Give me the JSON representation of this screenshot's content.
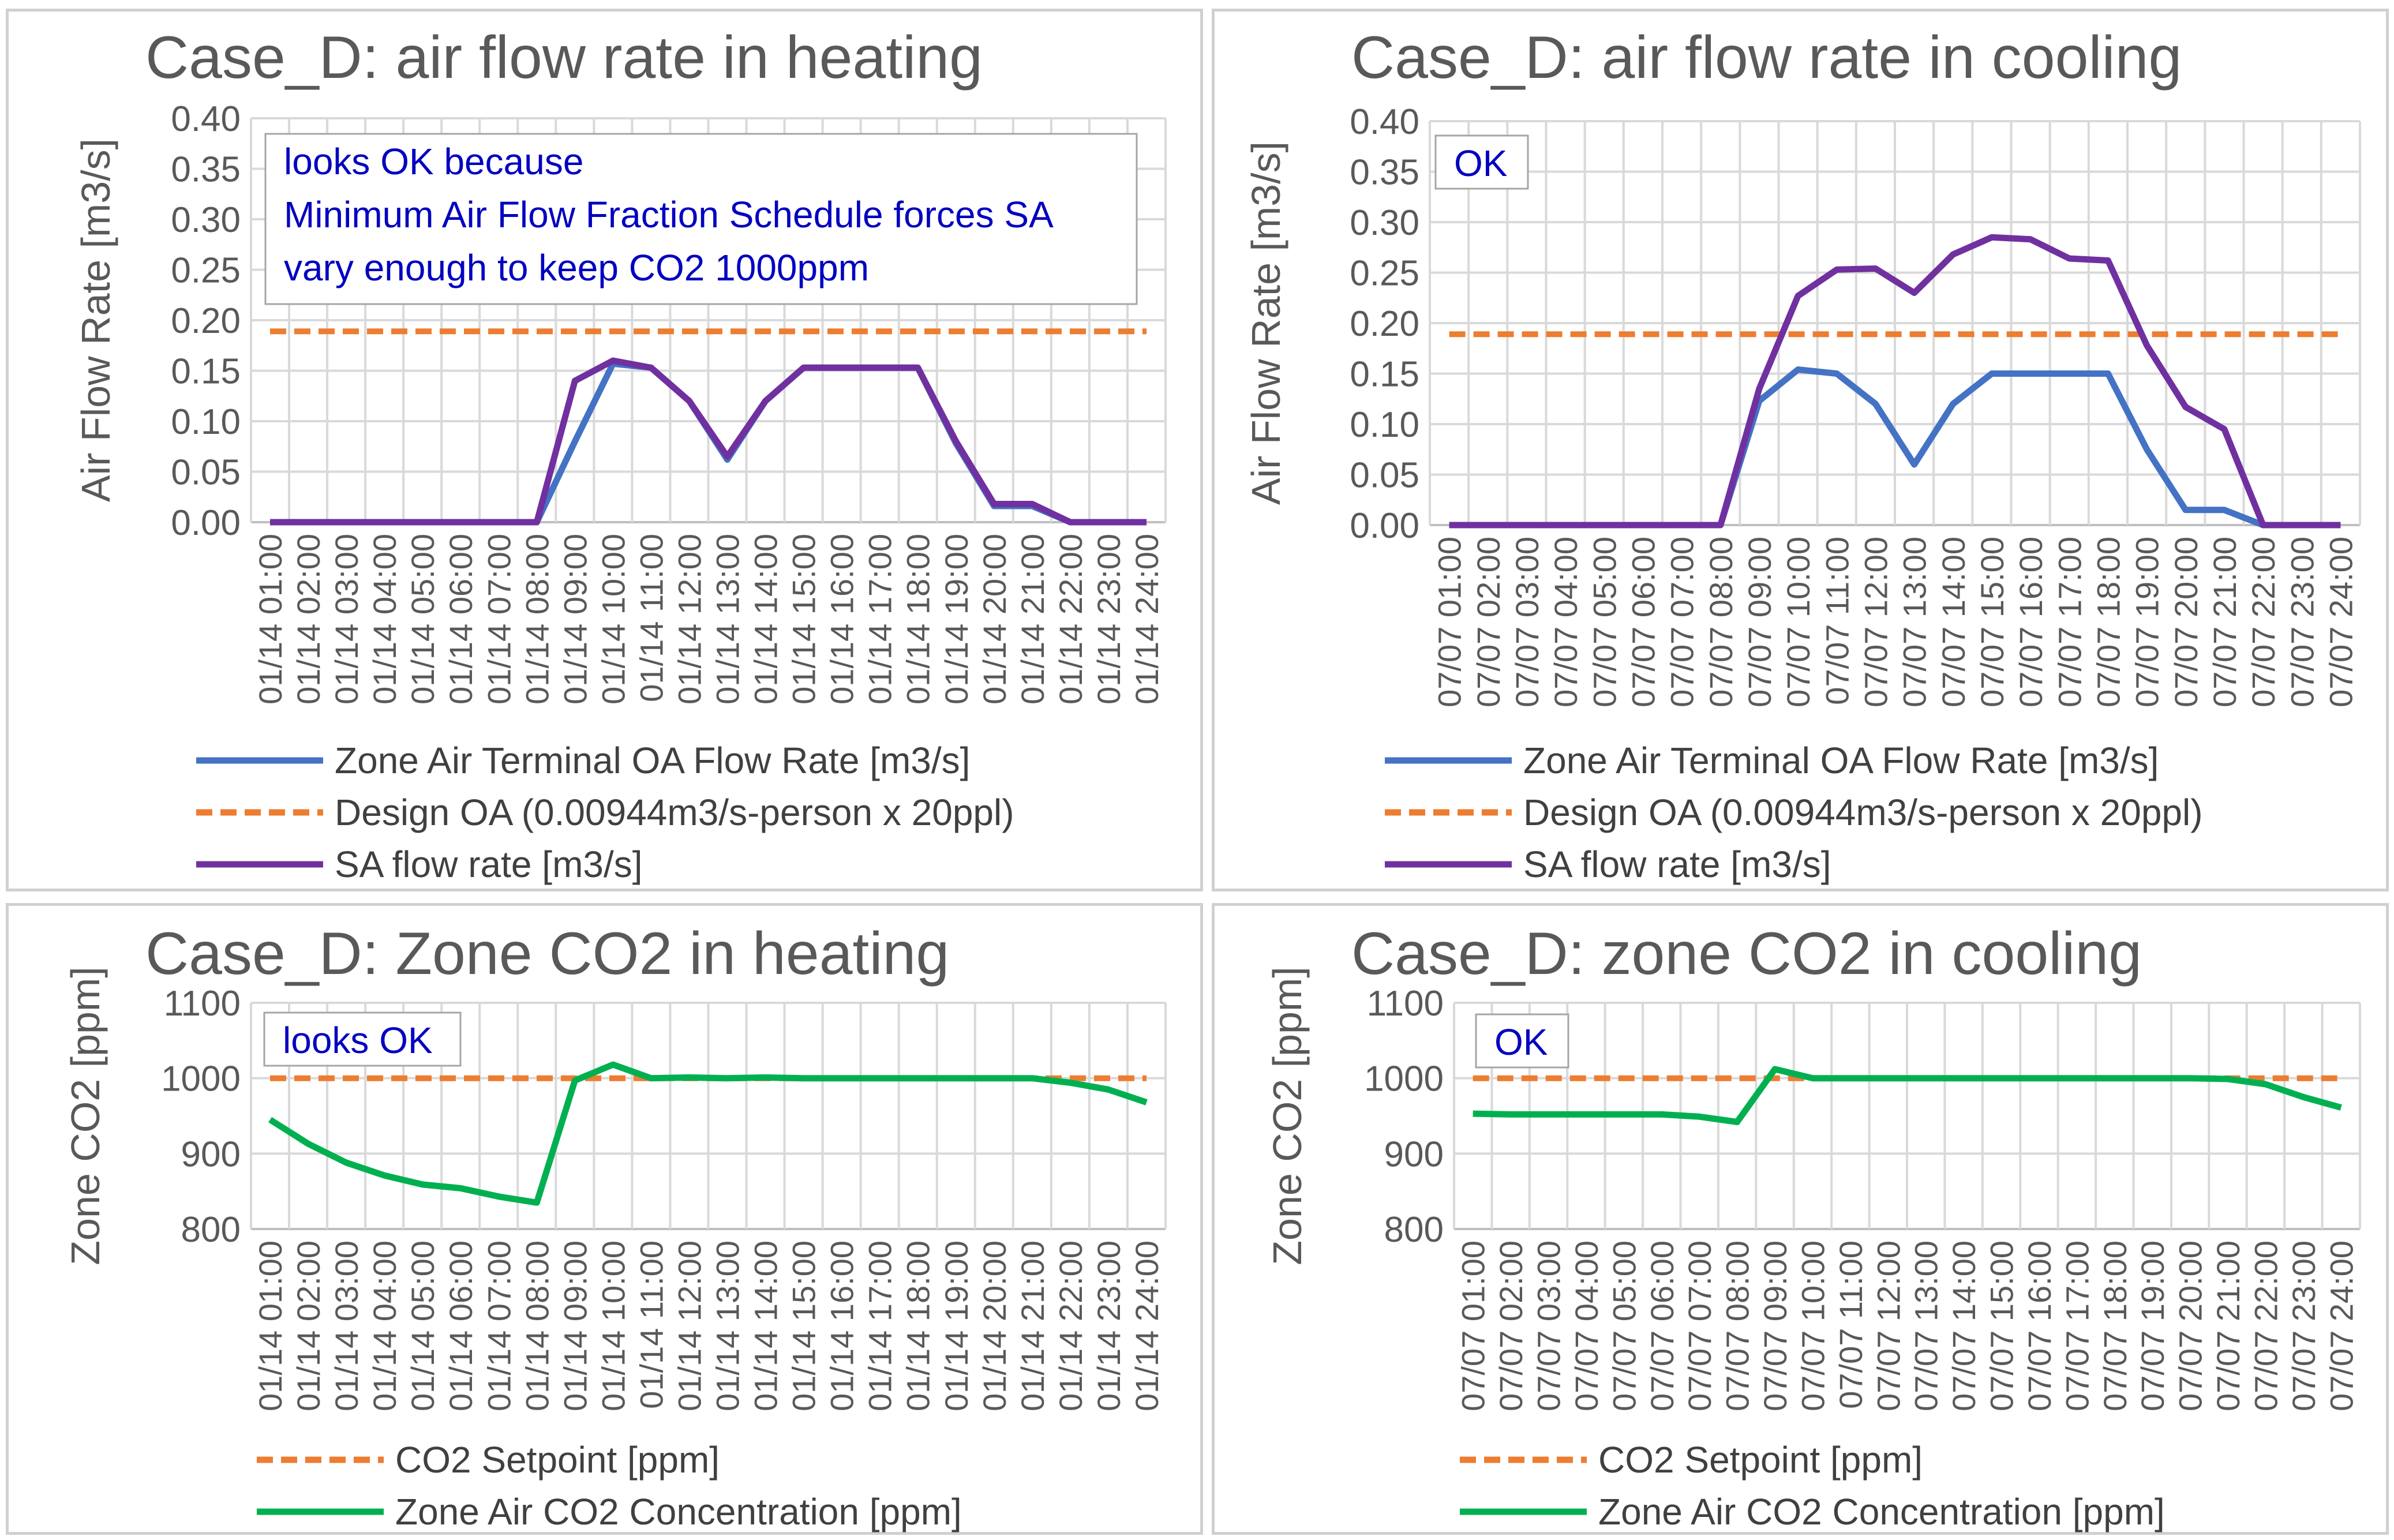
{
  "chart_data": [
    {
      "type": "line",
      "title": "Case_D: air flow rate in heating",
      "ylabel": "Air Flow Rate [m3/s]",
      "ylim": [
        0,
        0.4
      ],
      "yticks": [
        "0.00",
        "0.05",
        "0.10",
        "0.15",
        "0.20",
        "0.25",
        "0.30",
        "0.35",
        "0.40"
      ],
      "x": [
        "01/14  01:00",
        "01/14  02:00",
        "01/14  03:00",
        "01/14  04:00",
        "01/14  05:00",
        "01/14  06:00",
        "01/14  07:00",
        "01/14  08:00",
        "01/14  09:00",
        "01/14  10:00",
        "01/14  11:00",
        "01/14  12:00",
        "01/14  13:00",
        "01/14  14:00",
        "01/14  15:00",
        "01/14  16:00",
        "01/14  17:00",
        "01/14  18:00",
        "01/14  19:00",
        "01/14  20:00",
        "01/14  21:00",
        "01/14  22:00",
        "01/14  23:00",
        "01/14  24:00"
      ],
      "note": [
        "looks OK because",
        "Minimum Air Flow Fraction Schedule forces SA",
        "vary enough to keep CO2 1000ppm"
      ],
      "series": [
        {
          "name": "Zone Air Terminal OA Flow Rate [m3/s]",
          "color": "#4472c4",
          "style": "solid",
          "values": [
            0,
            0,
            0,
            0,
            0,
            0,
            0,
            0,
            0.08,
            0.157,
            0.153,
            0.12,
            0.062,
            0.12,
            0.153,
            0.153,
            0.153,
            0.153,
            0.078,
            0.016,
            0.016,
            0,
            0,
            0
          ]
        },
        {
          "name": "Design OA  (0.00944m3/s-person x 20ppl)",
          "color": "#ed7d31",
          "style": "dashed",
          "values": [
            0.189,
            0.189,
            0.189,
            0.189,
            0.189,
            0.189,
            0.189,
            0.189,
            0.189,
            0.189,
            0.189,
            0.189,
            0.189,
            0.189,
            0.189,
            0.189,
            0.189,
            0.189,
            0.189,
            0.189,
            0.189,
            0.189,
            0.189,
            0.189
          ]
        },
        {
          "name": "SA flow rate [m3/s]",
          "color": "#7030a0",
          "style": "solid",
          "values": [
            0,
            0,
            0,
            0,
            0,
            0,
            0,
            0,
            0.14,
            0.16,
            0.153,
            0.12,
            0.065,
            0.12,
            0.153,
            0.153,
            0.153,
            0.153,
            0.08,
            0.018,
            0.018,
            0,
            0,
            0
          ]
        }
      ]
    },
    {
      "type": "line",
      "title": "Case_D: air flow rate in cooling",
      "ylabel": "Air Flow Rate [m3/s]",
      "ylim": [
        0,
        0.4
      ],
      "yticks": [
        "0.00",
        "0.05",
        "0.10",
        "0.15",
        "0.20",
        "0.25",
        "0.30",
        "0.35",
        "0.40"
      ],
      "x": [
        "07/07  01:00",
        "07/07  02:00",
        "07/07  03:00",
        "07/07  04:00",
        "07/07  05:00",
        "07/07  06:00",
        "07/07  07:00",
        "07/07  08:00",
        "07/07  09:00",
        "07/07  10:00",
        "07/07  11:00",
        "07/07  12:00",
        "07/07  13:00",
        "07/07  14:00",
        "07/07  15:00",
        "07/07  16:00",
        "07/07  17:00",
        "07/07  18:00",
        "07/07  19:00",
        "07/07  20:00",
        "07/07  21:00",
        "07/07  22:00",
        "07/07  23:00",
        "07/07  24:00"
      ],
      "note": [
        "OK"
      ],
      "series": [
        {
          "name": "Zone Air Terminal OA Flow Rate [m3/s]",
          "color": "#4472c4",
          "style": "solid",
          "values": [
            0,
            0,
            0,
            0,
            0,
            0,
            0,
            0,
            0.123,
            0.154,
            0.15,
            0.12,
            0.06,
            0.12,
            0.15,
            0.15,
            0.15,
            0.15,
            0.075,
            0.015,
            0.015,
            0,
            0,
            0
          ]
        },
        {
          "name": "Design OA  (0.00944m3/s-person x 20ppl)",
          "color": "#ed7d31",
          "style": "dashed",
          "values": [
            0.189,
            0.189,
            0.189,
            0.189,
            0.189,
            0.189,
            0.189,
            0.189,
            0.189,
            0.189,
            0.189,
            0.189,
            0.189,
            0.189,
            0.189,
            0.189,
            0.189,
            0.189,
            0.189,
            0.189,
            0.189,
            0.189,
            0.189,
            0.189
          ]
        },
        {
          "name": "SA flow rate [m3/s]",
          "color": "#7030a0",
          "style": "solid",
          "values": [
            0,
            0,
            0,
            0,
            0,
            0,
            0,
            0,
            0.135,
            0.227,
            0.253,
            0.254,
            0.23,
            0.268,
            0.285,
            0.283,
            0.264,
            0.262,
            0.178,
            0.117,
            0.095,
            0,
            0,
            0
          ]
        }
      ]
    },
    {
      "type": "line",
      "title": "Case_D: Zone CO2 in heating",
      "ylabel": "Zone CO2 [ppm]",
      "ylim": [
        800,
        1100
      ],
      "yticks": [
        "800",
        "900",
        "1000",
        "1100"
      ],
      "x": [
        "01/14  01:00",
        "01/14  02:00",
        "01/14  03:00",
        "01/14  04:00",
        "01/14  05:00",
        "01/14  06:00",
        "01/14  07:00",
        "01/14  08:00",
        "01/14  09:00",
        "01/14  10:00",
        "01/14  11:00",
        "01/14  12:00",
        "01/14  13:00",
        "01/14  14:00",
        "01/14  15:00",
        "01/14  16:00",
        "01/14  17:00",
        "01/14  18:00",
        "01/14  19:00",
        "01/14  20:00",
        "01/14  21:00",
        "01/14  22:00",
        "01/14  23:00",
        "01/14  24:00"
      ],
      "note": [
        "looks OK"
      ],
      "series": [
        {
          "name": "CO2 Setpoint [ppm]",
          "color": "#ed7d31",
          "style": "dashed",
          "values": [
            1000,
            1000,
            1000,
            1000,
            1000,
            1000,
            1000,
            1000,
            1000,
            1000,
            1000,
            1000,
            1000,
            1000,
            1000,
            1000,
            1000,
            1000,
            1000,
            1000,
            1000,
            1000,
            1000,
            1000
          ]
        },
        {
          "name": "Zone Air CO2 Concentration [ppm]",
          "color": "#00b050",
          "style": "solid",
          "values": [
            945,
            913,
            888,
            871,
            859,
            854,
            843,
            835,
            997,
            1018,
            1000,
            1001,
            1000,
            1001,
            1000,
            1000,
            1000,
            1000,
            1000,
            1000,
            1000,
            994,
            985,
            968
          ]
        }
      ]
    },
    {
      "type": "line",
      "title": "Case_D: zone CO2 in cooling",
      "ylabel": "Zone CO2 [ppm]",
      "ylim": [
        800,
        1100
      ],
      "yticks": [
        "800",
        "900",
        "1000",
        "1100"
      ],
      "x": [
        "07/07  01:00",
        "07/07  02:00",
        "07/07  03:00",
        "07/07  04:00",
        "07/07  05:00",
        "07/07  06:00",
        "07/07  07:00",
        "07/07  08:00",
        "07/07  09:00",
        "07/07  10:00",
        "07/07  11:00",
        "07/07  12:00",
        "07/07  13:00",
        "07/07  14:00",
        "07/07  15:00",
        "07/07  16:00",
        "07/07  17:00",
        "07/07  18:00",
        "07/07  19:00",
        "07/07  20:00",
        "07/07  21:00",
        "07/07  22:00",
        "07/07  23:00",
        "07/07  24:00"
      ],
      "note": [
        "OK"
      ],
      "series": [
        {
          "name": "CO2 Setpoint [ppm]",
          "color": "#ed7d31",
          "style": "dashed",
          "values": [
            1000,
            1000,
            1000,
            1000,
            1000,
            1000,
            1000,
            1000,
            1000,
            1000,
            1000,
            1000,
            1000,
            1000,
            1000,
            1000,
            1000,
            1000,
            1000,
            1000,
            1000,
            1000,
            1000,
            1000
          ]
        },
        {
          "name": "Zone Air CO2 Concentration [ppm]",
          "color": "#00b050",
          "style": "solid",
          "values": [
            953,
            952,
            952,
            952,
            952,
            952,
            949,
            942,
            1012,
            1000,
            1000,
            1000,
            1000,
            1000,
            1000,
            1000,
            1000,
            1000,
            1000,
            1000,
            999,
            992,
            975,
            961
          ]
        }
      ]
    }
  ]
}
